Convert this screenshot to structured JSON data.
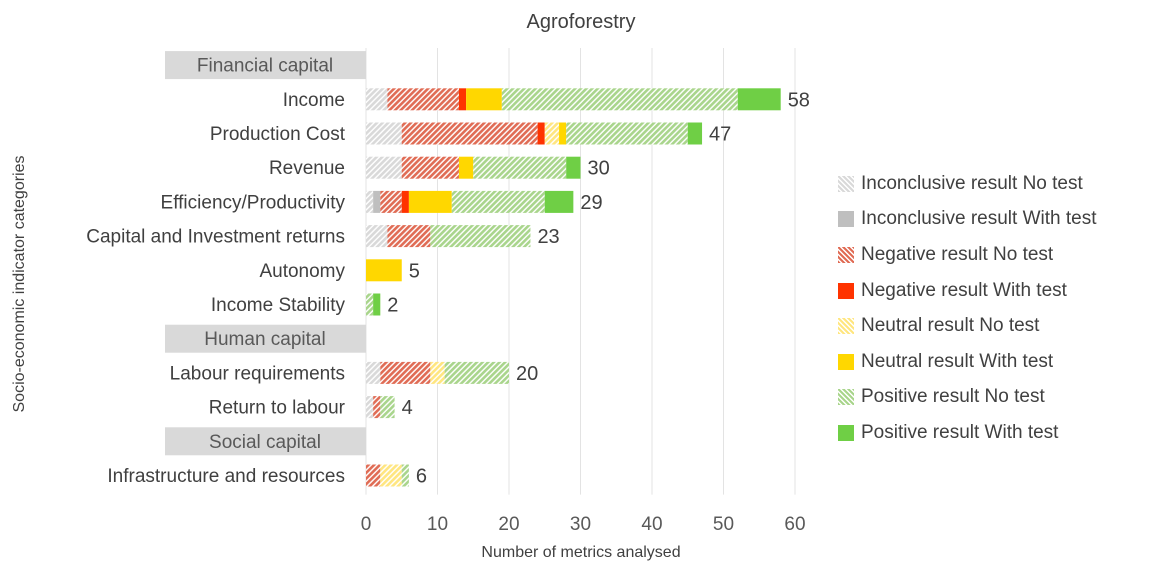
{
  "chart_data": {
    "type": "bar",
    "orientation": "horizontal",
    "stacked": true,
    "title": "Agroforestry",
    "xlabel": "Number of metrics analysed",
    "ylabel": "Socio-economic indicator categories",
    "xlim": [
      0,
      60
    ],
    "xticks": [
      0,
      10,
      20,
      30,
      40,
      50,
      60
    ],
    "grid": "vertical",
    "legend_position": "right",
    "groups": [
      "Financial capital",
      "Human capital",
      "Social capital"
    ],
    "rows": [
      {
        "kind": "group",
        "label": "Financial capital"
      },
      {
        "kind": "bar",
        "label": "Income",
        "total": 58
      },
      {
        "kind": "bar",
        "label": "Production Cost",
        "total": 47
      },
      {
        "kind": "bar",
        "label": "Revenue",
        "total": 30
      },
      {
        "kind": "bar",
        "label": "Efficiency/Productivity",
        "total": 29
      },
      {
        "kind": "bar",
        "label": "Capital and Investment returns",
        "total": 23
      },
      {
        "kind": "bar",
        "label": "Autonomy",
        "total": 5
      },
      {
        "kind": "bar",
        "label": "Income Stability",
        "total": 2
      },
      {
        "kind": "group",
        "label": "Human capital"
      },
      {
        "kind": "bar",
        "label": "Labour requirements",
        "total": 20
      },
      {
        "kind": "bar",
        "label": "Return to labour",
        "total": 4
      },
      {
        "kind": "group",
        "label": "Social capital"
      },
      {
        "kind": "bar",
        "label": "Infrastructure and resources",
        "total": 6
      }
    ],
    "categories": [
      "Income",
      "Production Cost",
      "Revenue",
      "Efficiency/Productivity",
      "Capital and Investment returns",
      "Autonomy",
      "Income Stability",
      "Labour requirements",
      "Return to labour",
      "Infrastructure and resources"
    ],
    "series": [
      {
        "name": "Inconclusive result No test",
        "color": "#d9d9d9",
        "pattern": "hatched",
        "values": [
          3,
          5,
          5,
          1,
          3,
          0,
          0,
          2,
          1,
          0
        ]
      },
      {
        "name": "Inconclusive result With test",
        "color": "#bfbfbf",
        "pattern": "solid",
        "values": [
          0,
          0,
          0,
          1,
          0,
          0,
          0,
          0,
          0,
          0
        ]
      },
      {
        "name": "Negative result No test",
        "color": "#e06c55",
        "pattern": "hatched",
        "values": [
          10,
          19,
          8,
          3,
          6,
          0,
          0,
          7,
          1,
          2
        ]
      },
      {
        "name": "Negative result With test",
        "color": "#ff3300",
        "pattern": "solid",
        "values": [
          1,
          1,
          0,
          1,
          0,
          0,
          0,
          0,
          0,
          0
        ]
      },
      {
        "name": "Neutral result No test",
        "color": "#ffe680",
        "pattern": "hatched",
        "values": [
          0,
          2,
          0,
          0,
          0,
          0,
          0,
          2,
          0,
          3
        ]
      },
      {
        "name": "Neutral result With test",
        "color": "#ffd700",
        "pattern": "solid",
        "values": [
          5,
          1,
          2,
          6,
          0,
          5,
          0,
          0,
          0,
          0
        ]
      },
      {
        "name": "Positive result No test",
        "color": "#a9d58c",
        "pattern": "hatched",
        "values": [
          33,
          17,
          13,
          13,
          14,
          0,
          1,
          9,
          2,
          1
        ]
      },
      {
        "name": "Positive result With test",
        "color": "#6fcf45",
        "pattern": "solid",
        "values": [
          6,
          2,
          2,
          4,
          0,
          0,
          1,
          0,
          0,
          0
        ]
      }
    ]
  }
}
